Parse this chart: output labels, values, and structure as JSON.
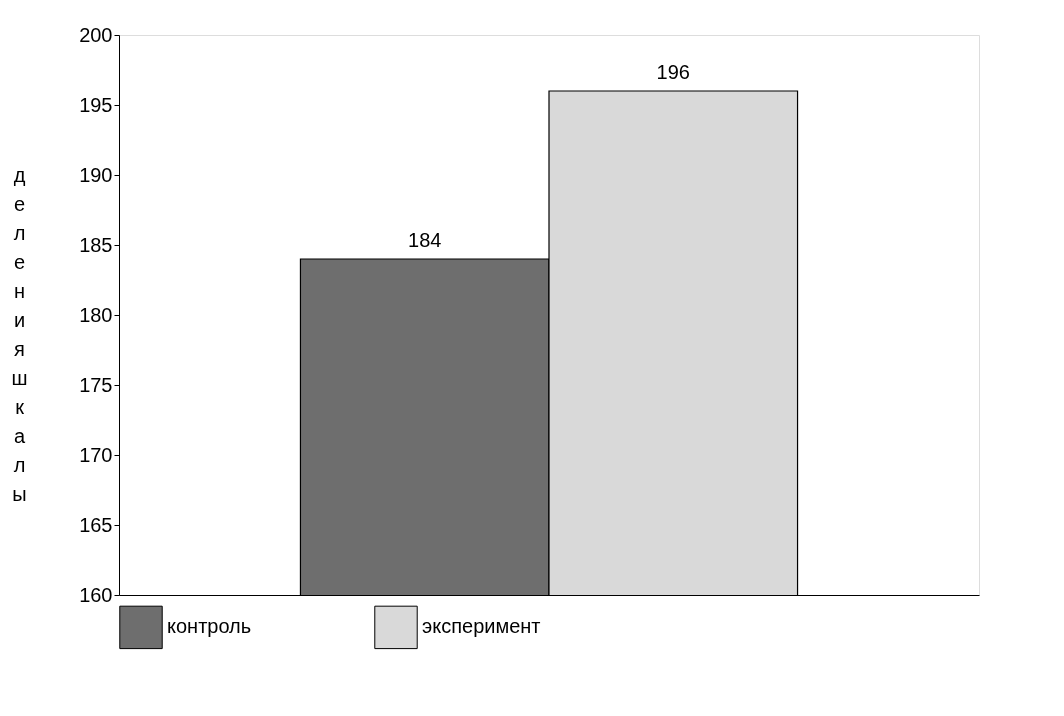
{
  "chart_data": {
    "type": "bar",
    "ylabel": "деления шкалы",
    "categories": [
      null
    ],
    "series": [
      {
        "name": "контроль",
        "color": "#6e6e6e",
        "values": [
          184
        ]
      },
      {
        "name": "эксперимент",
        "color": "#d9d9d9",
        "values": [
          196
        ]
      }
    ],
    "ylim": [
      160,
      200
    ],
    "yticks": [
      160,
      165,
      170,
      175,
      180,
      185,
      190,
      195,
      200
    ],
    "grid": false,
    "legend": "bottom",
    "data_labels": true
  }
}
